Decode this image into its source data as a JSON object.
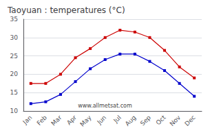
{
  "chart_data": {
    "type": "line",
    "title": "Taoyuan : temperatures (°C)",
    "categories": [
      "Jan",
      "Feb",
      "Mar",
      "Apr",
      "May",
      "Jun",
      "Jul",
      "Aug",
      "Sep",
      "Oct",
      "Nov",
      "Dec"
    ],
    "series": [
      {
        "color": "#cc0000",
        "values": [
          17.5,
          17.5,
          20.0,
          24.5,
          27.0,
          30.0,
          32.0,
          31.5,
          30.0,
          26.5,
          22.0,
          19.0
        ]
      },
      {
        "color": "#0000cc",
        "values": [
          12.0,
          12.5,
          14.5,
          18.0,
          21.5,
          24.0,
          25.5,
          25.5,
          23.5,
          21.0,
          17.5,
          14.0
        ]
      }
    ],
    "ylim": [
      10,
      35
    ],
    "yticks": [
      10,
      15,
      20,
      25,
      30,
      35
    ],
    "grid": true,
    "marker": "square",
    "annotation": "www.allmetsat.com"
  }
}
